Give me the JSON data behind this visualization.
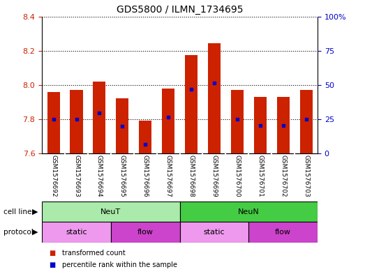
{
  "title": "GDS5800 / ILMN_1734695",
  "samples": [
    "GSM1576692",
    "GSM1576693",
    "GSM1576694",
    "GSM1576695",
    "GSM1576696",
    "GSM1576697",
    "GSM1576698",
    "GSM1576699",
    "GSM1576700",
    "GSM1576701",
    "GSM1576702",
    "GSM1576703"
  ],
  "bar_tops": [
    7.96,
    7.97,
    8.02,
    7.92,
    7.79,
    7.98,
    8.175,
    8.245,
    7.97,
    7.93,
    7.93,
    7.97
  ],
  "bar_bottoms": [
    7.6,
    7.6,
    7.6,
    7.6,
    7.6,
    7.6,
    7.6,
    7.6,
    7.6,
    7.6,
    7.6,
    7.6
  ],
  "blue_positions": [
    7.8,
    7.8,
    7.835,
    7.76,
    7.655,
    7.81,
    7.975,
    8.01,
    7.8,
    7.765,
    7.765,
    7.8
  ],
  "ylim": [
    7.6,
    8.4
  ],
  "yticks_left": [
    7.6,
    7.8,
    8.0,
    8.2,
    8.4
  ],
  "yticks_right_labels": [
    "0",
    "25",
    "50",
    "75",
    "100%"
  ],
  "yticks_right_vals": [
    0,
    25,
    50,
    75,
    100
  ],
  "bar_color": "#cc2200",
  "blue_color": "#0000cc",
  "cell_line_groups": [
    {
      "label": "NeuT",
      "start": 0,
      "end": 6,
      "color": "#aaeaaa"
    },
    {
      "label": "NeuN",
      "start": 6,
      "end": 12,
      "color": "#44cc44"
    }
  ],
  "protocol_groups": [
    {
      "label": "static",
      "start": 0,
      "end": 3,
      "color": "#ee99ee"
    },
    {
      "label": "flow",
      "start": 3,
      "end": 6,
      "color": "#cc44cc"
    },
    {
      "label": "static",
      "start": 6,
      "end": 9,
      "color": "#ee99ee"
    },
    {
      "label": "flow",
      "start": 9,
      "end": 12,
      "color": "#cc44cc"
    }
  ],
  "legend_items": [
    {
      "label": "transformed count",
      "color": "#cc2200"
    },
    {
      "label": "percentile rank within the sample",
      "color": "#0000cc"
    }
  ],
  "cell_line_label": "cell line",
  "protocol_label": "protocol",
  "ylabel_left_color": "#cc2200",
  "ylabel_right_color": "#0000cc",
  "sample_label_bg": "#cccccc",
  "fig_width": 5.23,
  "fig_height": 3.93,
  "fig_dpi": 100
}
